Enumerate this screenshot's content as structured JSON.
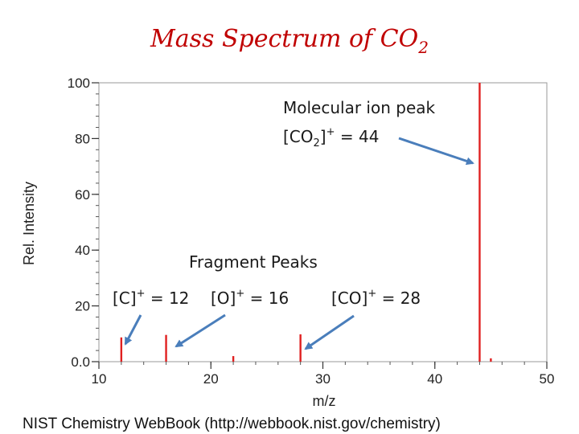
{
  "chart_data": {
    "type": "bar",
    "title": "Mass Spectrum of CO",
    "title_subscript": "2",
    "xlabel": "m/z",
    "ylabel": "Rel. Intensity",
    "xlim": [
      10,
      50
    ],
    "ylim": [
      0,
      100
    ],
    "xticks": [
      "10",
      "20",
      "30",
      "40",
      "50"
    ],
    "yticks": [
      "0.0",
      "20",
      "40",
      "60",
      "80",
      "100"
    ],
    "x": [
      12,
      16,
      22,
      28,
      44,
      45
    ],
    "values": [
      8.7,
      9.6,
      2.0,
      9.8,
      100,
      1.2
    ],
    "bar_color": "#e02020",
    "grid": false,
    "annotations": {
      "molecular_ion_line1": "Molecular ion peak",
      "molecular_ion_line2_a": "[CO",
      "molecular_ion_line2_sub": "2",
      "molecular_ion_line2_b": "]",
      "molecular_ion_line2_sup": "+",
      "molecular_ion_line2_c": " = 44",
      "fragment_heading": "Fragment Peaks",
      "carbon_a": "[C]",
      "carbon_sup": "+",
      "carbon_b": " = 12",
      "oxygen_a": "[O]",
      "oxygen_sup": "+",
      "oxygen_b": " = 16",
      "co_a": "[CO]",
      "co_sup": "+",
      "co_b": " = 28"
    },
    "arrow_color": "#4a7ebb",
    "source": "NIST Chemistry WebBook (http://webbook.nist.gov/chemistry)"
  }
}
